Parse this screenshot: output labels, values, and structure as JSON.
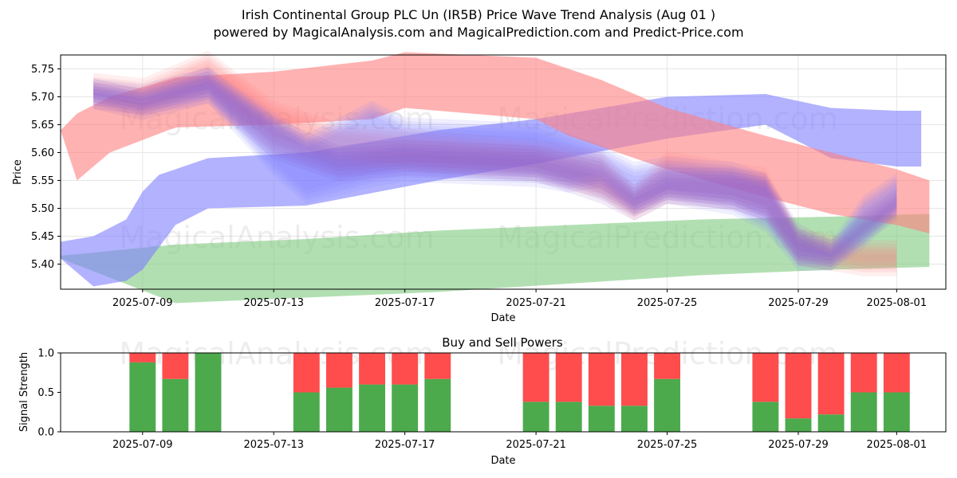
{
  "header": {
    "title": "Irish Continental Group PLC Un (IR5B) Price Wave Trend Analysis (Aug 01 )",
    "subtitle": "powered by MagicalAnalysis.com and MagicalPrediction.com and Predict-Price.com"
  },
  "watermarks": [
    "MagicalAnalysis.com",
    "MagicalPrediction.com"
  ],
  "colors": {
    "red_band": "#ff7f7f",
    "blue_band": "#7f7fff",
    "green_band": "#7fc97f",
    "buy": "#4caa4c",
    "sell": "#ff4c4c",
    "grid": "#e6e6e6"
  },
  "chart_data": [
    {
      "type": "area",
      "title": "",
      "xlabel": "Date",
      "ylabel": "Price",
      "x_range": [
        "2025-07-06T12:00",
        "2025-08-02T12:00"
      ],
      "ylim": [
        5.355,
        5.775
      ],
      "y_ticks": [
        "5.40",
        "5.45",
        "5.50",
        "5.55",
        "5.60",
        "5.65",
        "5.70",
        "5.75"
      ],
      "x_ticks": [
        "2025-07-09",
        "2025-07-13",
        "2025-07-17",
        "2025-07-21",
        "2025-07-25",
        "2025-07-29",
        "2025-08-01"
      ],
      "grid": true,
      "series": [
        {
          "name": "green-trend-band",
          "color": "green",
          "x": [
            "2025-07-06T12:00",
            "2025-07-10",
            "2025-07-14",
            "2025-07-18",
            "2025-07-22",
            "2025-07-26",
            "2025-07-30",
            "2025-08-02"
          ],
          "upper": [
            5.415,
            5.435,
            5.445,
            5.46,
            5.47,
            5.48,
            5.485,
            5.49
          ],
          "lower": [
            5.41,
            5.33,
            5.34,
            5.35,
            5.365,
            5.38,
            5.39,
            5.395
          ]
        },
        {
          "name": "blue-trend-band-rising",
          "color": "blue",
          "x": [
            "2025-07-06T12:00",
            "2025-07-07T12:00",
            "2025-07-08T12:00",
            "2025-07-09",
            "2025-07-09T12:00",
            "2025-07-10",
            "2025-07-11",
            "2025-07-14",
            "2025-07-18",
            "2025-07-21",
            "2025-07-25",
            "2025-07-28",
            "2025-07-30",
            "2025-08-01",
            "2025-08-01T18:00"
          ],
          "upper": [
            5.44,
            5.45,
            5.48,
            5.53,
            5.56,
            5.57,
            5.59,
            5.6,
            5.64,
            5.66,
            5.7,
            5.705,
            5.68,
            5.675,
            5.675
          ],
          "lower": [
            5.41,
            5.36,
            5.37,
            5.39,
            5.43,
            5.47,
            5.5,
            5.505,
            5.55,
            5.58,
            5.625,
            5.65,
            5.59,
            5.575,
            5.575
          ]
        },
        {
          "name": "red-trend-band-falling",
          "color": "red",
          "x": [
            "2025-07-06T12:00",
            "2025-07-07",
            "2025-07-08",
            "2025-07-10",
            "2025-07-13",
            "2025-07-16",
            "2025-07-17",
            "2025-07-21",
            "2025-07-22",
            "2025-07-23",
            "2025-07-25",
            "2025-07-28",
            "2025-07-30",
            "2025-08-01",
            "2025-08-02"
          ],
          "upper": [
            5.64,
            5.67,
            5.7,
            5.735,
            5.745,
            5.765,
            5.78,
            5.77,
            5.75,
            5.73,
            5.68,
            5.63,
            5.6,
            5.57,
            5.55
          ],
          "lower": [
            5.64,
            5.55,
            5.6,
            5.645,
            5.65,
            5.66,
            5.68,
            5.66,
            5.63,
            5.61,
            5.57,
            5.52,
            5.49,
            5.47,
            5.455
          ]
        }
      ],
      "wave_series": [
        {
          "name": "red-wave-band",
          "color": "red",
          "x": [
            "2025-07-07T12:00",
            "2025-07-09",
            "2025-07-11",
            "2025-07-13",
            "2025-07-15",
            "2025-07-17",
            "2025-07-19",
            "2025-07-21",
            "2025-07-23",
            "2025-07-24",
            "2025-07-25",
            "2025-07-27",
            "2025-07-28",
            "2025-07-29",
            "2025-07-31",
            "2025-08-01"
          ],
          "upper": [
            5.73,
            5.72,
            5.77,
            5.68,
            5.64,
            5.63,
            5.62,
            5.61,
            5.59,
            5.53,
            5.59,
            5.57,
            5.56,
            5.45,
            5.43,
            5.43
          ],
          "lower": [
            5.69,
            5.68,
            5.72,
            5.63,
            5.59,
            5.58,
            5.57,
            5.56,
            5.53,
            5.49,
            5.52,
            5.51,
            5.49,
            5.41,
            5.39,
            5.39
          ]
        },
        {
          "name": "blue-wave-band",
          "color": "blue",
          "x": [
            "2025-07-07T12:00",
            "2025-07-09",
            "2025-07-11",
            "2025-07-13",
            "2025-07-14",
            "2025-07-16",
            "2025-07-17",
            "2025-07-21",
            "2025-07-22",
            "2025-07-23",
            "2025-07-24",
            "2025-07-25",
            "2025-07-27",
            "2025-07-28",
            "2025-07-29",
            "2025-07-30",
            "2025-07-31",
            "2025-08-01"
          ],
          "upper": [
            5.72,
            5.71,
            5.74,
            5.66,
            5.62,
            5.68,
            5.65,
            5.64,
            5.62,
            5.6,
            5.57,
            5.58,
            5.57,
            5.55,
            5.45,
            5.43,
            5.51,
            5.55
          ],
          "lower": [
            5.69,
            5.68,
            5.7,
            5.57,
            5.52,
            5.55,
            5.56,
            5.55,
            5.54,
            5.55,
            5.5,
            5.52,
            5.5,
            5.47,
            5.4,
            5.4,
            5.44,
            5.5
          ]
        },
        {
          "name": "purple-wave-band",
          "color": "blue",
          "x": [
            "2025-07-07T12:00",
            "2025-07-09",
            "2025-07-11",
            "2025-07-13",
            "2025-07-15",
            "2025-07-17",
            "2025-07-21",
            "2025-07-23",
            "2025-07-24",
            "2025-07-25",
            "2025-07-27",
            "2025-07-28",
            "2025-07-29",
            "2025-07-30",
            "2025-07-31",
            "2025-08-01"
          ],
          "upper": [
            5.72,
            5.7,
            5.74,
            5.65,
            5.6,
            5.61,
            5.6,
            5.57,
            5.53,
            5.56,
            5.56,
            5.55,
            5.46,
            5.43,
            5.48,
            5.52
          ],
          "lower": [
            5.69,
            5.67,
            5.7,
            5.6,
            5.56,
            5.57,
            5.56,
            5.52,
            5.49,
            5.52,
            5.51,
            5.49,
            5.41,
            5.4,
            5.45,
            5.49
          ]
        }
      ]
    },
    {
      "type": "bar",
      "title": "Buy and Sell Powers",
      "xlabel": "Date",
      "ylabel": "Signal Strength",
      "ylim": [
        0,
        1
      ],
      "y_ticks": [
        "0.0",
        "0.5",
        "1.0"
      ],
      "x_ticks": [
        "2025-07-09",
        "2025-07-13",
        "2025-07-17",
        "2025-07-21",
        "2025-07-25",
        "2025-07-29",
        "2025-08-01"
      ],
      "categories": [
        "2025-07-09",
        "2025-07-10",
        "2025-07-11",
        "2025-07-14",
        "2025-07-15",
        "2025-07-16",
        "2025-07-17",
        "2025-07-18",
        "2025-07-21",
        "2025-07-22",
        "2025-07-23",
        "2025-07-24",
        "2025-07-25",
        "2025-07-28",
        "2025-07-29",
        "2025-07-30",
        "2025-07-31",
        "2025-08-01"
      ],
      "series": [
        {
          "name": "Buy",
          "color": "buy",
          "values": [
            0.88,
            0.67,
            1.0,
            0.5,
            0.56,
            0.6,
            0.6,
            0.67,
            0.38,
            0.38,
            0.33,
            0.33,
            0.67,
            0.38,
            0.17,
            0.22,
            0.5,
            0.5
          ]
        },
        {
          "name": "Sell",
          "color": "sell",
          "values": [
            0.12,
            0.33,
            0.0,
            0.5,
            0.44,
            0.4,
            0.4,
            0.33,
            0.62,
            0.62,
            0.67,
            0.67,
            0.33,
            0.62,
            0.83,
            0.78,
            0.5,
            0.5
          ]
        }
      ]
    }
  ]
}
